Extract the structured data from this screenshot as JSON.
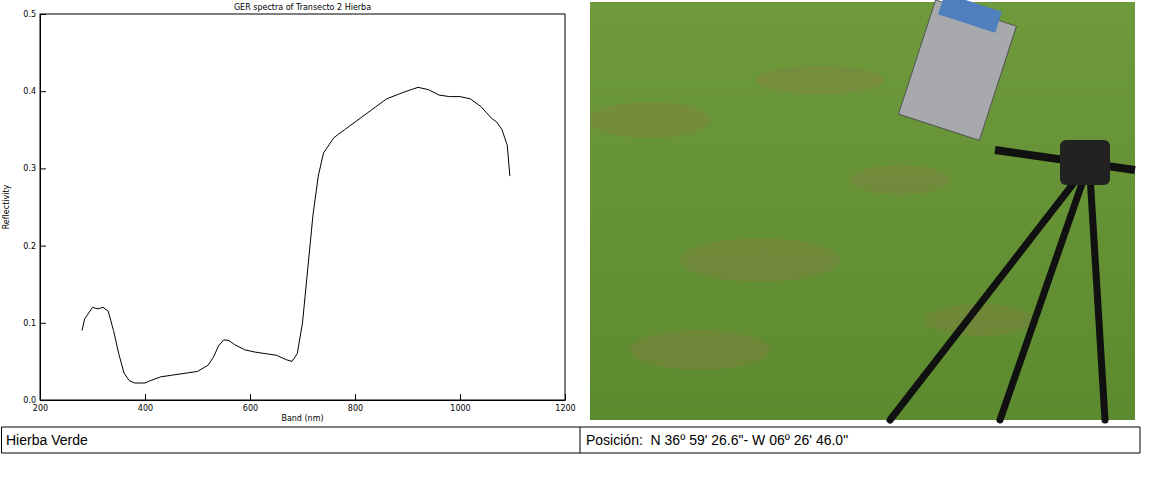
{
  "chart_data": {
    "type": "line",
    "title": "GER spectra of Transecto 2 Hierba",
    "x_label": "Band (nm)",
    "y_label": "Reflectivity",
    "x": [
      280,
      285,
      290,
      300,
      310,
      320,
      330,
      340,
      350,
      360,
      370,
      380,
      400,
      410,
      430,
      450,
      480,
      500,
      520,
      530,
      540,
      550,
      560,
      570,
      590,
      610,
      630,
      650,
      670,
      680,
      690,
      700,
      710,
      720,
      730,
      740,
      760,
      780,
      800,
      830,
      860,
      890,
      920,
      940,
      960,
      980,
      1000,
      1020,
      1040,
      1060,
      1070,
      1080,
      1090,
      1095
    ],
    "values": [
      0.09,
      0.105,
      0.11,
      0.12,
      0.118,
      0.12,
      0.115,
      0.09,
      0.06,
      0.035,
      0.025,
      0.022,
      0.022,
      0.025,
      0.03,
      0.032,
      0.035,
      0.037,
      0.045,
      0.055,
      0.07,
      0.078,
      0.077,
      0.072,
      0.065,
      0.062,
      0.06,
      0.058,
      0.052,
      0.05,
      0.06,
      0.1,
      0.17,
      0.24,
      0.29,
      0.32,
      0.34,
      0.35,
      0.36,
      0.375,
      0.39,
      0.398,
      0.405,
      0.402,
      0.395,
      0.393,
      0.393,
      0.39,
      0.38,
      0.365,
      0.36,
      0.35,
      0.33,
      0.29
    ],
    "color": "#000000",
    "xlim": [
      200,
      1200
    ],
    "xticks": [
      200,
      400,
      600,
      800,
      1000,
      1200
    ],
    "ylim": [
      0,
      0.5
    ],
    "yticks": [
      {
        "value": 0,
        "label": "0.0"
      },
      0.1,
      0.2,
      0.3,
      0.4,
      0.5
    ],
    "grid": false
  },
  "captions": {
    "left": "Hierba Verde",
    "right": "Posición:  N 36º 59' 26.6\"- W 06º 26' 46.0\""
  }
}
